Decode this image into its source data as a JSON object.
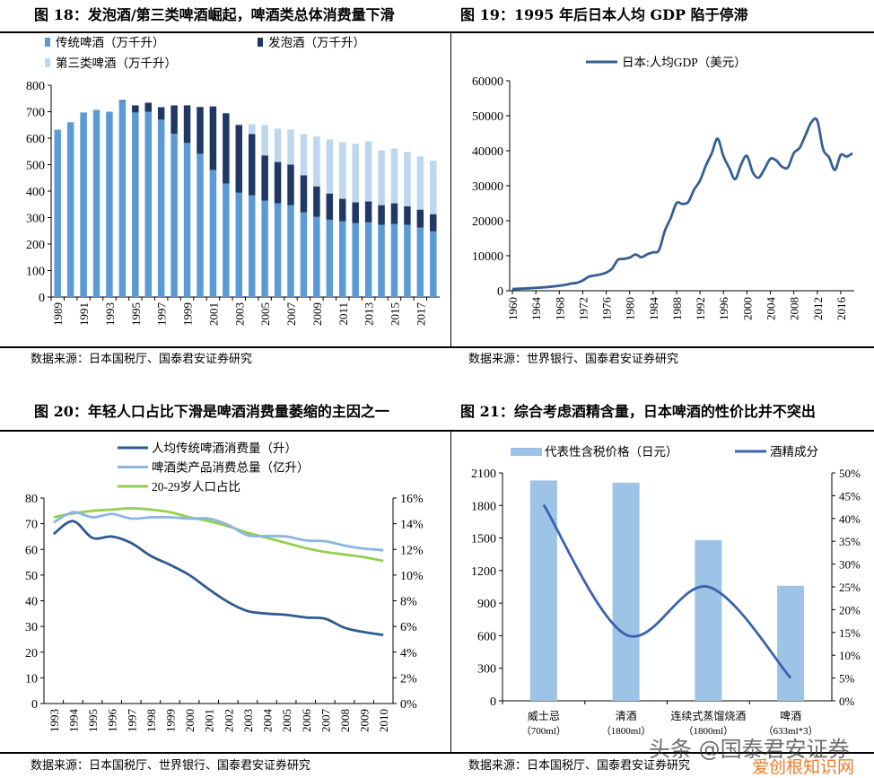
{
  "panels": {
    "fig18": {
      "title": "图 18：发泡酒/第三类啤酒崛起，啤酒类总体消费量下滑",
      "source": "数据来源：日本国税厅、国泰君安证券研究"
    },
    "fig19": {
      "title": "图 19：1995 年后日本人均 GDP 陷于停滞",
      "source": "数据来源：世界银行、国泰君安证券研究"
    },
    "fig20": {
      "title": "图 20：年轻人口占比下滑是啤酒消费量萎缩的主因之一",
      "source": "数据来源：日本国税厅、世界银行、国泰君安证券研究"
    },
    "fig21": {
      "title": "图 21：综合考虑酒精含量，日本啤酒的性价比并不突出",
      "source": "数据来源：日本国税厅、国泰君安证券研究"
    }
  },
  "watermark": {
    "text1": "头条 @国泰君安证券",
    "text2": "爱创根知识网",
    "color2": "#f07a2a"
  },
  "chart_data": [
    {
      "type": "bar",
      "stacked": true,
      "categories": [
        "1989",
        "1990",
        "1991",
        "1992",
        "1993",
        "1994",
        "1995",
        "1996",
        "1997",
        "1998",
        "1999",
        "2000",
        "2001",
        "2002",
        "2003",
        "2004",
        "2005",
        "2006",
        "2007",
        "2008",
        "2009",
        "2010",
        "2011",
        "2012",
        "2013",
        "2014",
        "2015",
        "2016",
        "2017",
        "2018"
      ],
      "tick_labels": [
        "1989",
        "1991",
        "1993",
        "1995",
        "1997",
        "1999",
        "2001",
        "2003",
        "2005",
        "2007",
        "2009",
        "2011",
        "2013",
        "2015",
        "2017"
      ],
      "series": [
        {
          "name": "传统啤酒（万千升）",
          "color": "#5b9bd5",
          "values": [
            632,
            660,
            697,
            707,
            700,
            741,
            697,
            700,
            670,
            617,
            582,
            541,
            480,
            429,
            394,
            384,
            364,
            354,
            347,
            320,
            303,
            292,
            286,
            279,
            282,
            273,
            276,
            273,
            262,
            248
          ]
        },
        {
          "name": "发泡酒（万千升）",
          "color": "#1f3864",
          "values": [
            0,
            0,
            0,
            0,
            0,
            3,
            27,
            34,
            47,
            107,
            142,
            177,
            240,
            265,
            256,
            232,
            171,
            156,
            153,
            140,
            115,
            99,
            85,
            79,
            79,
            74,
            78,
            70,
            68,
            65
          ]
        },
        {
          "name": "第三类啤酒（万千升）",
          "color": "#bdd7ee",
          "values": [
            0,
            0,
            0,
            0,
            0,
            0,
            0,
            0,
            0,
            0,
            0,
            0,
            0,
            0,
            3,
            37,
            115,
            126,
            133,
            156,
            188,
            204,
            214,
            221,
            227,
            207,
            207,
            205,
            201,
            202
          ]
        }
      ],
      "ylim": [
        0,
        800
      ],
      "yticks": [
        0,
        100,
        200,
        300,
        400,
        500,
        600,
        700,
        800
      ],
      "legend": "top-left",
      "grid": false
    },
    {
      "type": "line",
      "x": [
        1960,
        1961,
        1962,
        1963,
        1964,
        1965,
        1966,
        1967,
        1968,
        1969,
        1970,
        1971,
        1972,
        1973,
        1974,
        1975,
        1976,
        1977,
        1978,
        1979,
        1980,
        1981,
        1982,
        1983,
        1984,
        1985,
        1986,
        1987,
        1988,
        1989,
        1990,
        1991,
        1992,
        1993,
        1994,
        1995,
        1996,
        1997,
        1998,
        1999,
        2000,
        2001,
        2002,
        2003,
        2004,
        2005,
        2006,
        2007,
        2008,
        2009,
        2010,
        2011,
        2012,
        2013,
        2014,
        2015,
        2016,
        2017,
        2018
      ],
      "series": [
        {
          "name": "日本:人均GDP（美元）",
          "color": "#355f91",
          "values": [
            480,
            560,
            630,
            720,
            840,
            920,
            1070,
            1230,
            1450,
            1670,
            2040,
            2270,
            2920,
            3990,
            4350,
            4660,
            5200,
            6330,
            8820,
            9100,
            9460,
            10360,
            9580,
            10420,
            10980,
            11580,
            17110,
            20750,
            25050,
            24810,
            25360,
            28920,
            31460,
            35770,
            39270,
            43440,
            38440,
            35020,
            31900,
            36030,
            38530,
            33850,
            32290,
            34810,
            37690,
            37220,
            35430,
            35280,
            39340,
            40850,
            44510,
            48170,
            48600,
            40450,
            38110,
            34520,
            38790,
            38330,
            39290
          ]
        }
      ],
      "xticks": [
        "1960",
        "1964",
        "1968",
        "1972",
        "1976",
        "1980",
        "1984",
        "1988",
        "1992",
        "1996",
        "2000",
        "2004",
        "2008",
        "2012",
        "2016"
      ],
      "ylim": [
        0,
        60000
      ],
      "yticks": [
        0,
        10000,
        20000,
        30000,
        40000,
        50000,
        60000
      ],
      "legend": "top",
      "grid": false
    },
    {
      "type": "line",
      "categories": [
        "1993",
        "1994",
        "1995",
        "1996",
        "1997",
        "1998",
        "1999",
        "2000",
        "2001",
        "2002",
        "2003",
        "2004",
        "2005",
        "2006",
        "2007",
        "2008",
        "2009",
        "2010"
      ],
      "series": [
        {
          "name": "人均传统啤酒消费量（升）",
          "color": "#2e5a8f",
          "axis": "left",
          "values": [
            66,
            71,
            64.5,
            65,
            62.5,
            57.5,
            54,
            50,
            44.5,
            39.5,
            36,
            35,
            34.5,
            33.5,
            33,
            29.5,
            27.8,
            26.7
          ]
        },
        {
          "name": "啤酒类产品消费总量（亿升）",
          "color": "#8db4e2",
          "axis": "left",
          "values": [
            70.5,
            74.5,
            72.5,
            73.8,
            72,
            72.5,
            72.5,
            72,
            72,
            69.5,
            65.5,
            65.2,
            65,
            63.5,
            63.2,
            61.5,
            60.3,
            59.7
          ]
        },
        {
          "name": "20-29岁人口占比",
          "color": "#92d050",
          "axis": "right",
          "values": [
            14.5,
            14.8,
            15.0,
            15.1,
            15.2,
            15.1,
            14.9,
            14.5,
            14.2,
            13.8,
            13.3,
            12.9,
            12.5,
            12.1,
            11.8,
            11.6,
            11.4,
            11.1
          ]
        }
      ],
      "ylim": [
        0,
        80
      ],
      "yticks": [
        0,
        10,
        20,
        30,
        40,
        50,
        60,
        70,
        80
      ],
      "y2lim": [
        0,
        16
      ],
      "y2ticks": [
        "0%",
        "2%",
        "4%",
        "6%",
        "8%",
        "10%",
        "12%",
        "14%",
        "16%"
      ],
      "legend": "top",
      "grid": false
    },
    {
      "type": "bar",
      "categories": [
        [
          "威士忌",
          "（700ml）"
        ],
        [
          "清酒",
          "（1800ml）"
        ],
        [
          "连续式蒸馏烧酒",
          "（1800ml）"
        ],
        [
          "啤酒",
          "（633ml*3）"
        ]
      ],
      "series": [
        {
          "name": "代表性含税价格（日元）",
          "color": "#9dc3e6",
          "axis": "left",
          "kind": "bar",
          "values": [
            2030,
            2010,
            1480,
            1060
          ]
        },
        {
          "name": "酒精成分",
          "color": "#3a62ad",
          "axis": "right",
          "kind": "line",
          "values": [
            43,
            14.5,
            25,
            5
          ]
        }
      ],
      "ylim": [
        0,
        2100
      ],
      "yticks": [
        0,
        300,
        600,
        900,
        1200,
        1500,
        1800,
        2100
      ],
      "y2lim": [
        0,
        50
      ],
      "y2ticks": [
        "0%",
        "5%",
        "10%",
        "15%",
        "20%",
        "25%",
        "30%",
        "35%",
        "40%",
        "45%",
        "50%"
      ],
      "legend": "top",
      "grid": false
    }
  ]
}
